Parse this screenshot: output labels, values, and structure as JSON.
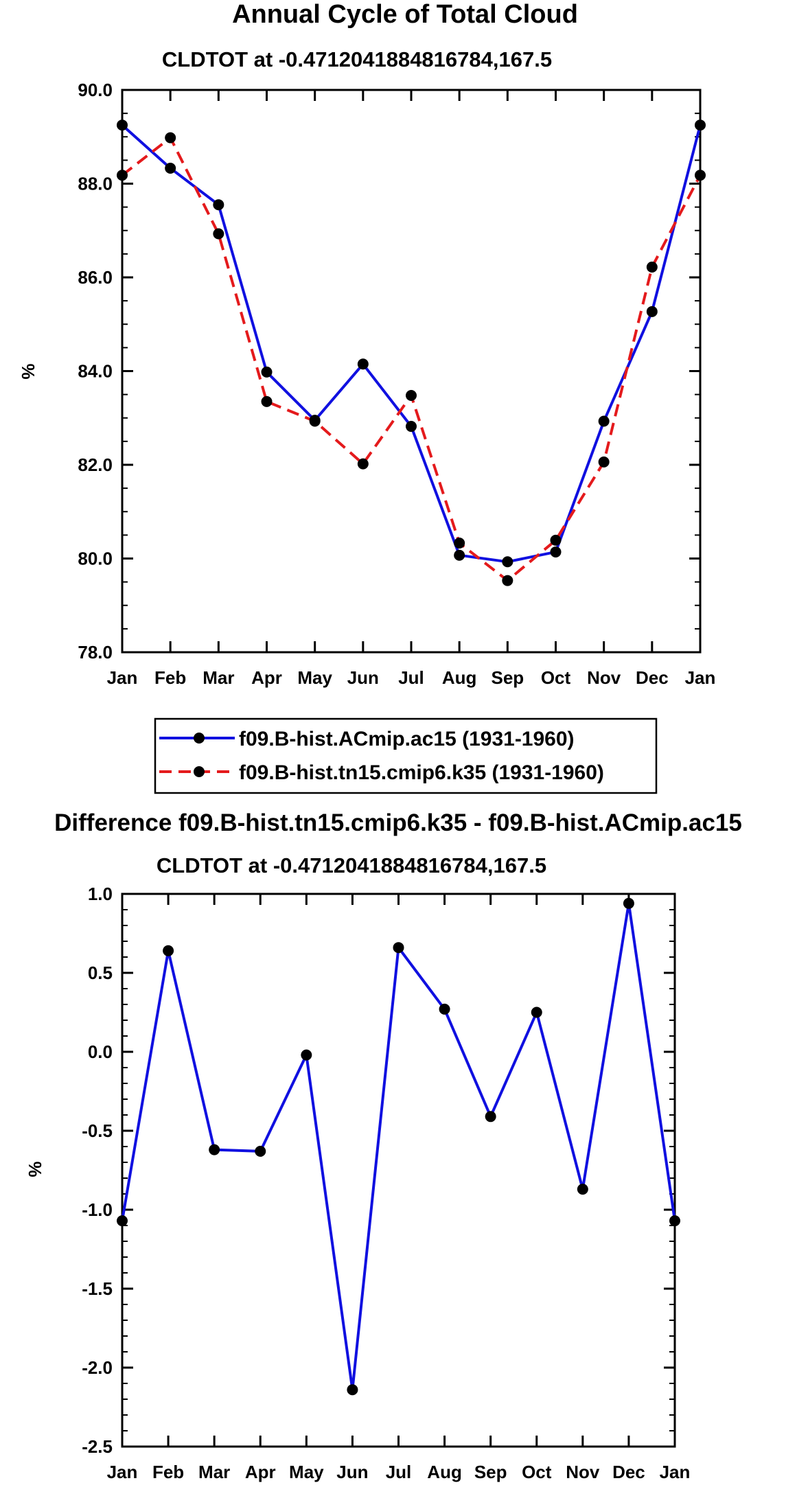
{
  "chart_data": [
    {
      "type": "line",
      "title": "Annual Cycle of Total Cloud",
      "subtitle": "CLDTOT at -0.4712041884816784,167.5",
      "ylabel": "%",
      "xlabel": "",
      "categories": [
        "Jan",
        "Feb",
        "Mar",
        "Apr",
        "May",
        "Jun",
        "Jul",
        "Aug",
        "Sep",
        "Oct",
        "Nov",
        "Dec",
        "Jan"
      ],
      "ylim": [
        78.0,
        90.0
      ],
      "yticks": [
        "78.0",
        "80.0",
        "82.0",
        "84.0",
        "86.0",
        "88.0",
        "90.0"
      ],
      "series": [
        {
          "name": "f09.B-hist.ACmip.ac15 (1931-1960)",
          "color": "#1010e0",
          "style": "solid",
          "values": [
            89.25,
            88.33,
            87.55,
            83.98,
            82.95,
            84.15,
            82.82,
            80.07,
            79.93,
            80.14,
            82.93,
            85.27,
            89.25
          ]
        },
        {
          "name": "f09.B-hist.tn15.cmip6.k35 (1931-1960)",
          "color": "#e41a1c",
          "style": "dashed",
          "values": [
            88.18,
            88.98,
            86.93,
            83.35,
            82.93,
            82.02,
            83.48,
            80.33,
            79.53,
            80.39,
            82.06,
            86.22,
            88.18
          ]
        }
      ],
      "legend": "below"
    },
    {
      "type": "line",
      "title": "Difference f09.B-hist.tn15.cmip6.k35 - f09.B-hist.ACmip.ac15",
      "subtitle": "CLDTOT at -0.4712041884816784,167.5",
      "ylabel": "%",
      "xlabel": "",
      "categories": [
        "Jan",
        "Feb",
        "Mar",
        "Apr",
        "May",
        "Jun",
        "Jul",
        "Aug",
        "Sep",
        "Oct",
        "Nov",
        "Dec",
        "Jan"
      ],
      "ylim": [
        -2.5,
        1.0
      ],
      "yticks": [
        "-2.5",
        "-2.0",
        "-1.5",
        "-1.0",
        "-0.5",
        "0.0",
        "0.5",
        "1.0"
      ],
      "series": [
        {
          "name": "difference",
          "color": "#1010e0",
          "style": "solid",
          "values": [
            -1.07,
            0.64,
            -0.62,
            -0.63,
            -0.02,
            -2.14,
            0.66,
            0.27,
            -0.41,
            0.25,
            -0.87,
            0.94,
            -1.07
          ]
        }
      ]
    }
  ]
}
